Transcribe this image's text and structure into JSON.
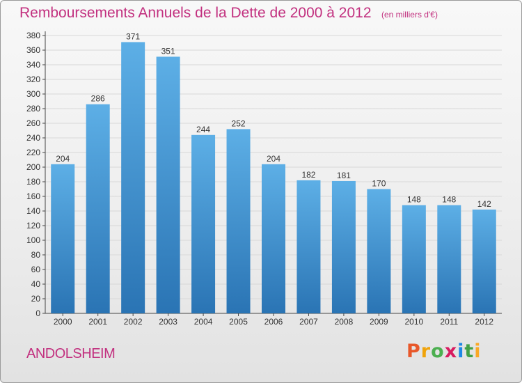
{
  "chart_data": {
    "type": "bar",
    "title": "Remboursements Annuels de la Dette de 2000 à 2012",
    "subtitle": "(en milliers d'€)",
    "categories": [
      "2000",
      "2001",
      "2002",
      "2003",
      "2004",
      "2005",
      "2006",
      "2007",
      "2008",
      "2009",
      "2010",
      "2011",
      "2012"
    ],
    "values": [
      204,
      286,
      371,
      351,
      244,
      252,
      204,
      182,
      181,
      170,
      148,
      148,
      142
    ],
    "value_labels": [
      "204",
      "286",
      "371",
      "351",
      "244",
      "252",
      "204",
      "182",
      "181",
      "170",
      "148",
      "148",
      "142"
    ],
    "xlabel": "",
    "ylabel": "",
    "ylim": [
      0,
      380
    ],
    "y_ticks": [
      0,
      20,
      40,
      60,
      80,
      100,
      120,
      140,
      160,
      180,
      200,
      220,
      240,
      260,
      280,
      300,
      320,
      340,
      360,
      380
    ],
    "grid": true,
    "legend": "none",
    "bar_color_top": "#5dafe6",
    "bar_color_bottom": "#2a74b4",
    "grid_color": "#d8d8d8"
  },
  "commune": "ANDOLSHEIM",
  "brand": {
    "letters": [
      "P",
      "r",
      "o",
      "x",
      "i",
      "t",
      "i"
    ],
    "colors": [
      "#e8582a",
      "#f0a30a",
      "#4caf50",
      "#d81b60",
      "#1e88e5",
      "#43a047",
      "#f9a825"
    ]
  },
  "accent_color": "#c2307f"
}
